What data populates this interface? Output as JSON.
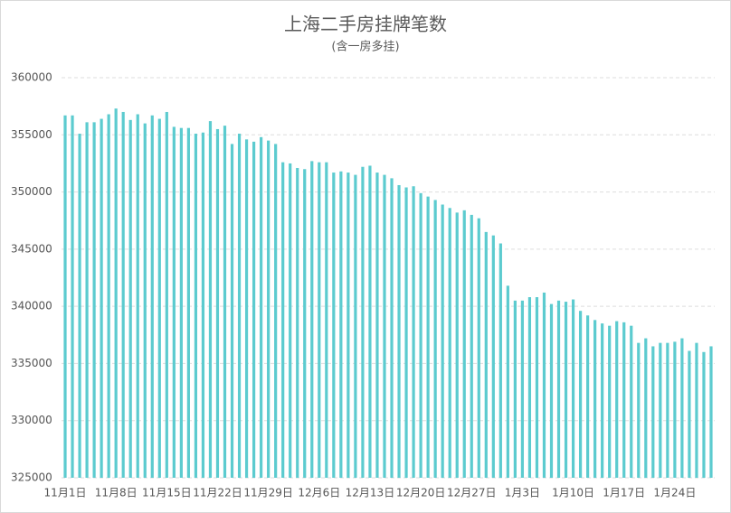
{
  "chart_data": {
    "type": "bar",
    "title": "上海二手房挂牌笔数",
    "subtitle": "(含一房多挂)",
    "categories": [
      "11月1日",
      null,
      null,
      null,
      null,
      null,
      null,
      "11月8日",
      null,
      null,
      null,
      null,
      null,
      null,
      "11月15日",
      null,
      null,
      null,
      null,
      null,
      null,
      "11月22日",
      null,
      null,
      null,
      null,
      null,
      null,
      "11月29日",
      null,
      null,
      null,
      null,
      null,
      null,
      "12月6日",
      null,
      null,
      null,
      null,
      null,
      null,
      "12月13日",
      null,
      null,
      null,
      null,
      null,
      null,
      "12月20日",
      null,
      null,
      null,
      null,
      null,
      null,
      "12月27日",
      null,
      null,
      null,
      null,
      null,
      null,
      "1月3日",
      null,
      null,
      null,
      null,
      null,
      null,
      "1月10日",
      null,
      null,
      null,
      null,
      null,
      null,
      "1月17日",
      null,
      null,
      null,
      null,
      null,
      null,
      "1月24日",
      null,
      null,
      null,
      null,
      null
    ],
    "values": [
      356700,
      356700,
      355100,
      356100,
      356100,
      356400,
      356800,
      357300,
      357000,
      356300,
      356800,
      356000,
      356700,
      356400,
      357000,
      355700,
      355600,
      355600,
      355100,
      355200,
      356200,
      355500,
      355800,
      354200,
      355100,
      354600,
      354400,
      354800,
      354500,
      354200,
      352600,
      352500,
      352100,
      352000,
      352700,
      352600,
      352600,
      351700,
      351800,
      351700,
      351500,
      352200,
      352300,
      351700,
      351500,
      351200,
      350600,
      350400,
      350500,
      349900,
      349600,
      349300,
      348900,
      348600,
      348200,
      348400,
      348000,
      347700,
      346500,
      346200,
      345500,
      341800,
      340500,
      340500,
      340800,
      340800,
      341200,
      340200,
      340500,
      340400,
      340600,
      339600,
      339200,
      338800,
      338500,
      338300,
      338700,
      338600,
      338300,
      336800,
      337200,
      336500,
      336800,
      336800,
      336900,
      337200,
      336100,
      336800,
      336000,
      336500
    ],
    "color": "#5ccbcf",
    "ylim": [
      325000,
      360000
    ],
    "yticks": [
      325000,
      330000,
      335000,
      340000,
      345000,
      350000,
      355000,
      360000
    ],
    "grid": true
  }
}
